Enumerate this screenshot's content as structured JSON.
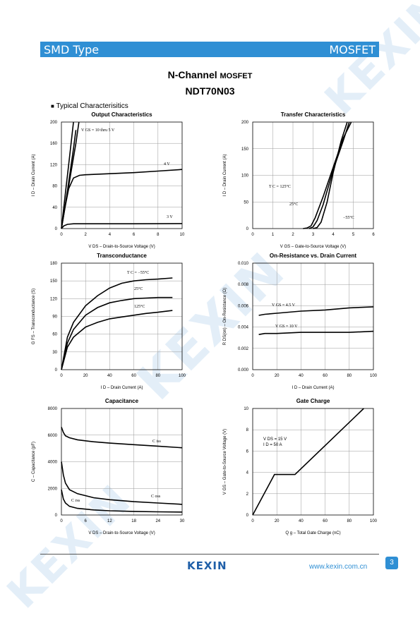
{
  "header": {
    "left": "SMD Type",
    "right": "MOSFET"
  },
  "title": {
    "line1_main": "N-Channel",
    "line1_sub": "MOSFET",
    "part": "NDT70N03"
  },
  "section": {
    "bullet": "■",
    "label": "Typical  Characterisitics"
  },
  "footer": {
    "logo": "KEXIN",
    "url": "www.kexin.com.cn",
    "page": "3"
  },
  "watermark": {
    "text": "KEXIN"
  },
  "colors": {
    "accent": "#2f8fd4",
    "logo": "#1f5fa8"
  },
  "chart_data": [
    {
      "id": "output",
      "type": "line",
      "title": "Output Characteristics",
      "xlabel": "V DS  –  Drain-to-Source Voltage (V)",
      "ylabel": "I D  –  Drain Current (A)",
      "xticks": [
        "0",
        "2",
        "4",
        "6",
        "8",
        "10"
      ],
      "yticks": [
        "0",
        "40",
        "80",
        "120",
        "160",
        "200"
      ],
      "xlim": [
        0,
        10
      ],
      "ylim": [
        0,
        200
      ],
      "series": [
        {
          "name": "V GS = 10  thru  5 V",
          "x": [
            0,
            0.2,
            0.4,
            0.6,
            0.8,
            1.0
          ],
          "y": [
            0,
            40,
            80,
            120,
            160,
            200
          ]
        },
        {
          "x": [
            0,
            0.25,
            0.5,
            0.75,
            1.0,
            1.2
          ],
          "y": [
            0,
            35,
            70,
            110,
            150,
            185
          ]
        },
        {
          "x": [
            0,
            0.3,
            0.6,
            0.9,
            1.2,
            1.45
          ],
          "y": [
            0,
            40,
            80,
            120,
            160,
            200
          ]
        },
        {
          "name": "4  V",
          "x": [
            0,
            0.3,
            0.6,
            1,
            1.5,
            2,
            4,
            6,
            8,
            10
          ],
          "y": [
            0,
            40,
            75,
            95,
            100,
            101,
            103,
            105,
            108,
            111
          ]
        },
        {
          "name": "3  V",
          "x": [
            0,
            0.2,
            0.5,
            1,
            2,
            4,
            6,
            8,
            10
          ],
          "y": [
            0,
            5,
            8,
            9,
            9,
            9,
            9,
            9.2,
            9.4
          ]
        }
      ]
    },
    {
      "id": "transfer",
      "type": "line",
      "title": "Transfer Characteristics",
      "xlabel": "V GS  –  Gate-to-Source Voltage (V)",
      "ylabel": "I D  –  Drain Current (A)",
      "xticks": [
        "0",
        "1",
        "2",
        "3",
        "4",
        "5",
        "6"
      ],
      "yticks": [
        "0",
        "50",
        "100",
        "150",
        "200"
      ],
      "xlim": [
        0,
        6
      ],
      "ylim": [
        0,
        200
      ],
      "series": [
        {
          "name": "T C = 125°C",
          "x": [
            2.5,
            2.7,
            2.9,
            3.1,
            3.5,
            4.0,
            4.5,
            4.9
          ],
          "y": [
            0,
            1,
            5,
            20,
            60,
            115,
            170,
            200
          ]
        },
        {
          "name": "25°C",
          "x": [
            2.8,
            3.0,
            3.2,
            3.5,
            4.0,
            4.5,
            4.8
          ],
          "y": [
            0,
            3,
            15,
            45,
            110,
            165,
            200
          ]
        },
        {
          "name": "−55°C",
          "x": [
            3.0,
            3.2,
            3.4,
            3.7,
            4.0,
            4.4,
            4.7
          ],
          "y": [
            0,
            2,
            12,
            50,
            105,
            165,
            200
          ]
        }
      ]
    },
    {
      "id": "transconductance",
      "type": "line",
      "title": "Transconductance",
      "xlabel": "I D  –  Drain Current (A)",
      "ylabel": "G FS  –  Transconductance (S)",
      "xticks": [
        "0",
        "20",
        "40",
        "60",
        "80",
        "100"
      ],
      "yticks": [
        "0",
        "30",
        "60",
        "90",
        "120",
        "150",
        "180"
      ],
      "xlim": [
        0,
        100
      ],
      "ylim": [
        0,
        180
      ],
      "series": [
        {
          "name": "T C = −55°C",
          "x": [
            0,
            5,
            10,
            20,
            30,
            40,
            50,
            60,
            70,
            80,
            92
          ],
          "y": [
            0,
            55,
            80,
            108,
            125,
            138,
            146,
            150,
            152,
            153,
            155
          ]
        },
        {
          "name": "25°C",
          "x": [
            0,
            5,
            10,
            20,
            30,
            40,
            50,
            60,
            70,
            80,
            92
          ],
          "y": [
            0,
            45,
            68,
            92,
            105,
            113,
            117,
            120,
            121,
            122,
            122
          ]
        },
        {
          "name": "125°C",
          "x": [
            0,
            5,
            10,
            20,
            30,
            40,
            50,
            60,
            70,
            80,
            92
          ],
          "y": [
            0,
            38,
            55,
            72,
            80,
            86,
            89,
            92,
            95,
            97,
            100
          ]
        }
      ]
    },
    {
      "id": "onres",
      "type": "line",
      "title": "On-Resistance vs. Drain Current",
      "xlabel": "I D  –  Drain Current (A)",
      "ylabel": "R DS(on)  –  On-Resistance (Ω)",
      "xticks": [
        "0",
        "20",
        "40",
        "60",
        "80",
        "100"
      ],
      "yticks": [
        "0.000",
        "0.002",
        "0.004",
        "0.006",
        "0.008",
        "0.010"
      ],
      "xlim": [
        0,
        100
      ],
      "ylim": [
        0,
        0.01
      ],
      "series": [
        {
          "name": "V GS = 4.5 V",
          "x": [
            5,
            10,
            20,
            40,
            60,
            80,
            100
          ],
          "y": [
            0.0051,
            0.0052,
            0.0053,
            0.0055,
            0.0056,
            0.0058,
            0.0059
          ]
        },
        {
          "name": "V GS = 10 V",
          "x": [
            5,
            10,
            20,
            40,
            60,
            80,
            100
          ],
          "y": [
            0.0033,
            0.0034,
            0.0034,
            0.0035,
            0.0035,
            0.0035,
            0.0036
          ]
        }
      ]
    },
    {
      "id": "capacitance",
      "type": "line",
      "title": "Capacitance",
      "xlabel": "V DS  –  Drain-to-Source Voltage (V)",
      "ylabel": "C  –  Capacitance (pF)",
      "xticks": [
        "0",
        "6",
        "12",
        "18",
        "24",
        "30"
      ],
      "yticks": [
        "0",
        "2000",
        "4000",
        "6000",
        "8000"
      ],
      "xlim": [
        0,
        30
      ],
      "ylim": [
        0,
        8000
      ],
      "series": [
        {
          "name": "C iss",
          "x": [
            0,
            0.5,
            1,
            2,
            4,
            8,
            12,
            18,
            24,
            30
          ],
          "y": [
            6600,
            6200,
            5950,
            5800,
            5650,
            5500,
            5400,
            5280,
            5170,
            5050
          ]
        },
        {
          "name": "C oss",
          "x": [
            0,
            0.5,
            1,
            2,
            4,
            8,
            12,
            18,
            24,
            30
          ],
          "y": [
            4000,
            3000,
            2400,
            1900,
            1600,
            1300,
            1150,
            1000,
            900,
            800
          ]
        },
        {
          "name": "C rss",
          "x": [
            0,
            0.5,
            1,
            2,
            4,
            8,
            12,
            18,
            24,
            30
          ],
          "y": [
            1900,
            1200,
            900,
            650,
            500,
            380,
            320,
            270,
            240,
            220
          ]
        }
      ]
    },
    {
      "id": "gate",
      "type": "line",
      "title": "Gate Charge",
      "xlabel": "Q g  –  Total Gate Charge (nC)",
      "ylabel": "V GS  –  Gate-to-Source Voltage (V)",
      "xticks": [
        "0",
        "20",
        "40",
        "60",
        "80",
        "100"
      ],
      "yticks": [
        "0",
        "2",
        "4",
        "6",
        "8",
        "10"
      ],
      "xlim": [
        0,
        100
      ],
      "ylim": [
        0,
        10
      ],
      "annotation": [
        "V DS = 15 V",
        "I D = 50 A"
      ],
      "series": [
        {
          "x": [
            0,
            18,
            35,
            92
          ],
          "y": [
            0,
            3.8,
            3.8,
            10
          ]
        }
      ]
    }
  ]
}
